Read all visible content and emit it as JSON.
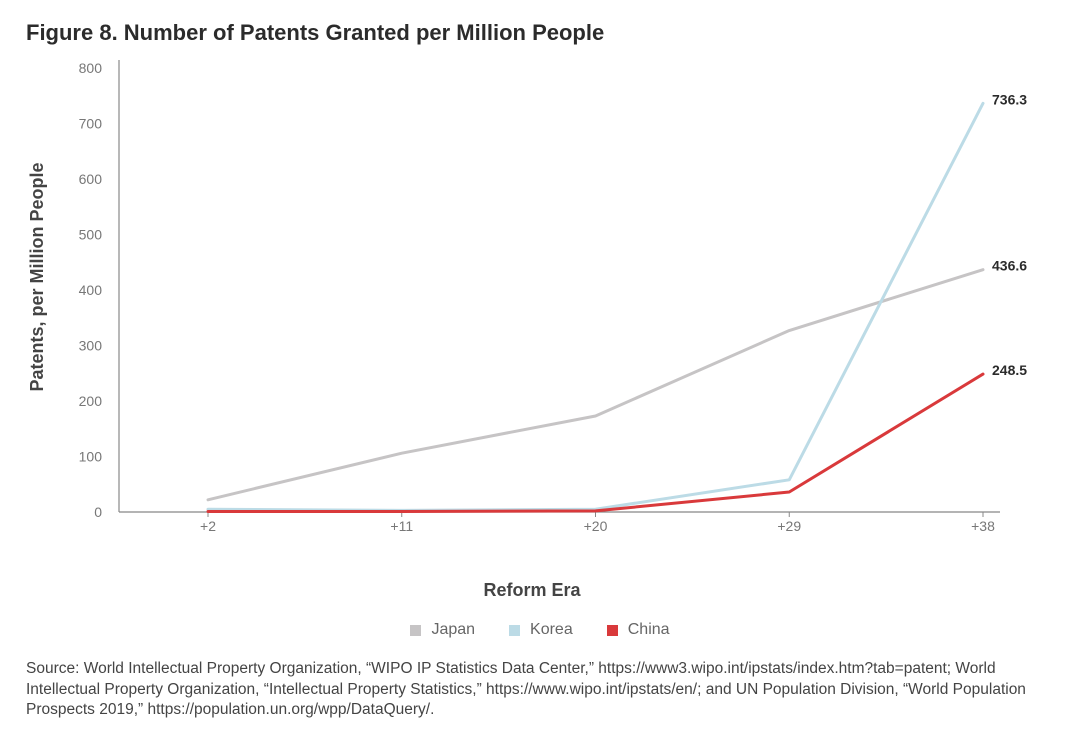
{
  "chart_data": {
    "type": "line",
    "title": "Figure 8. Number of Patents Granted per Million People",
    "xlabel": "Reform Era",
    "ylabel": "Patents, per Million People",
    "categories": [
      "+2",
      "+11",
      "+20",
      "+29",
      "+38"
    ],
    "ylim": [
      0,
      800
    ],
    "yticks": [
      "0",
      "100",
      "200",
      "300",
      "400",
      "500",
      "600",
      "700",
      "800"
    ],
    "grid": false,
    "legend_position": "bottom-center",
    "series": [
      {
        "name": "Japan",
        "color": "#c6c4c5",
        "values": [
          22,
          106,
          173,
          327,
          436.6
        ],
        "end_label": "436.6"
      },
      {
        "name": "Korea",
        "color": "#bcdbe6",
        "values": [
          5,
          3,
          5,
          58,
          736.3
        ],
        "end_label": "736.3"
      },
      {
        "name": "China",
        "color": "#d9393b",
        "values": [
          1,
          1,
          2,
          36,
          248.5
        ],
        "end_label": "248.5"
      }
    ]
  },
  "source": "Source: World Intellectual Property Organization, “WIPO IP Statistics Data Center,” https://www3.wipo.int/ipstats/index.htm?tab=patent; World Intellectual Property Organization, “Intellectual Property Statistics,” https://www.wipo.int/ipstats/en/; and UN Population Division, “World Population Prospects 2019,” https://population.un.org/wpp/DataQuery/."
}
